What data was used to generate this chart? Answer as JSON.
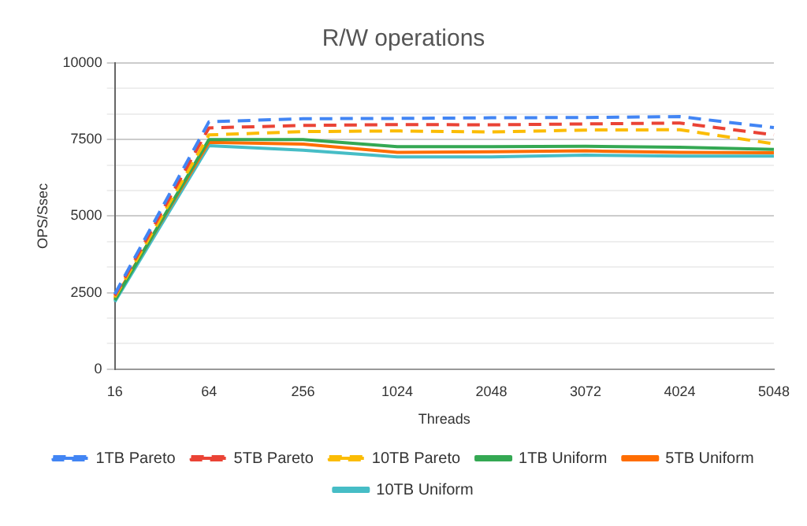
{
  "chart_data": {
    "type": "line",
    "title": "R/W operations",
    "xlabel": "Threads",
    "ylabel": "OPS/Ssec",
    "categories": [
      "16",
      "64",
      "256",
      "1024",
      "2048",
      "3072",
      "4024",
      "5048"
    ],
    "series": [
      {
        "name": "1TB Pareto",
        "color": "#4285f4",
        "line_style": "dashed",
        "values": [
          2450,
          8080,
          8180,
          8190,
          8210,
          8220,
          8250,
          7890
        ]
      },
      {
        "name": "5TB Pareto",
        "color": "#ea4335",
        "line_style": "dashed",
        "values": [
          2400,
          7880,
          7960,
          7990,
          7980,
          8010,
          8040,
          7650
        ]
      },
      {
        "name": "10TB Pareto",
        "color": "#fbbc04",
        "line_style": "dashed",
        "values": [
          2350,
          7650,
          7760,
          7780,
          7750,
          7810,
          7820,
          7360
        ]
      },
      {
        "name": "1TB Uniform",
        "color": "#34a853",
        "line_style": "solid",
        "values": [
          2250,
          7500,
          7500,
          7270,
          7270,
          7280,
          7250,
          7180
        ]
      },
      {
        "name": "5TB Uniform",
        "color": "#ff6d01",
        "line_style": "solid",
        "values": [
          2300,
          7410,
          7350,
          7080,
          7100,
          7130,
          7080,
          7070
        ]
      },
      {
        "name": "10TB Uniform",
        "color": "#46bdc6",
        "line_style": "solid",
        "values": [
          2200,
          7300,
          7150,
          6930,
          6930,
          6990,
          6960,
          6960
        ]
      }
    ],
    "ylim": [
      0,
      10000
    ],
    "yticks": [
      0,
      {
        "value": 833.3,
        "label": null
      },
      {
        "value": 1666.7,
        "label": null
      },
      2500,
      {
        "value": 3333.3,
        "label": null
      },
      {
        "value": 4166.7,
        "label": null
      },
      5000,
      {
        "value": 5833.3,
        "label": null
      },
      {
        "value": 6666.7,
        "label": null
      },
      7500,
      {
        "value": 8333.3,
        "label": null
      },
      {
        "value": 9166.7,
        "label": null
      },
      10000
    ],
    "grid": "y",
    "legend": "bottom",
    "marker": "none"
  }
}
